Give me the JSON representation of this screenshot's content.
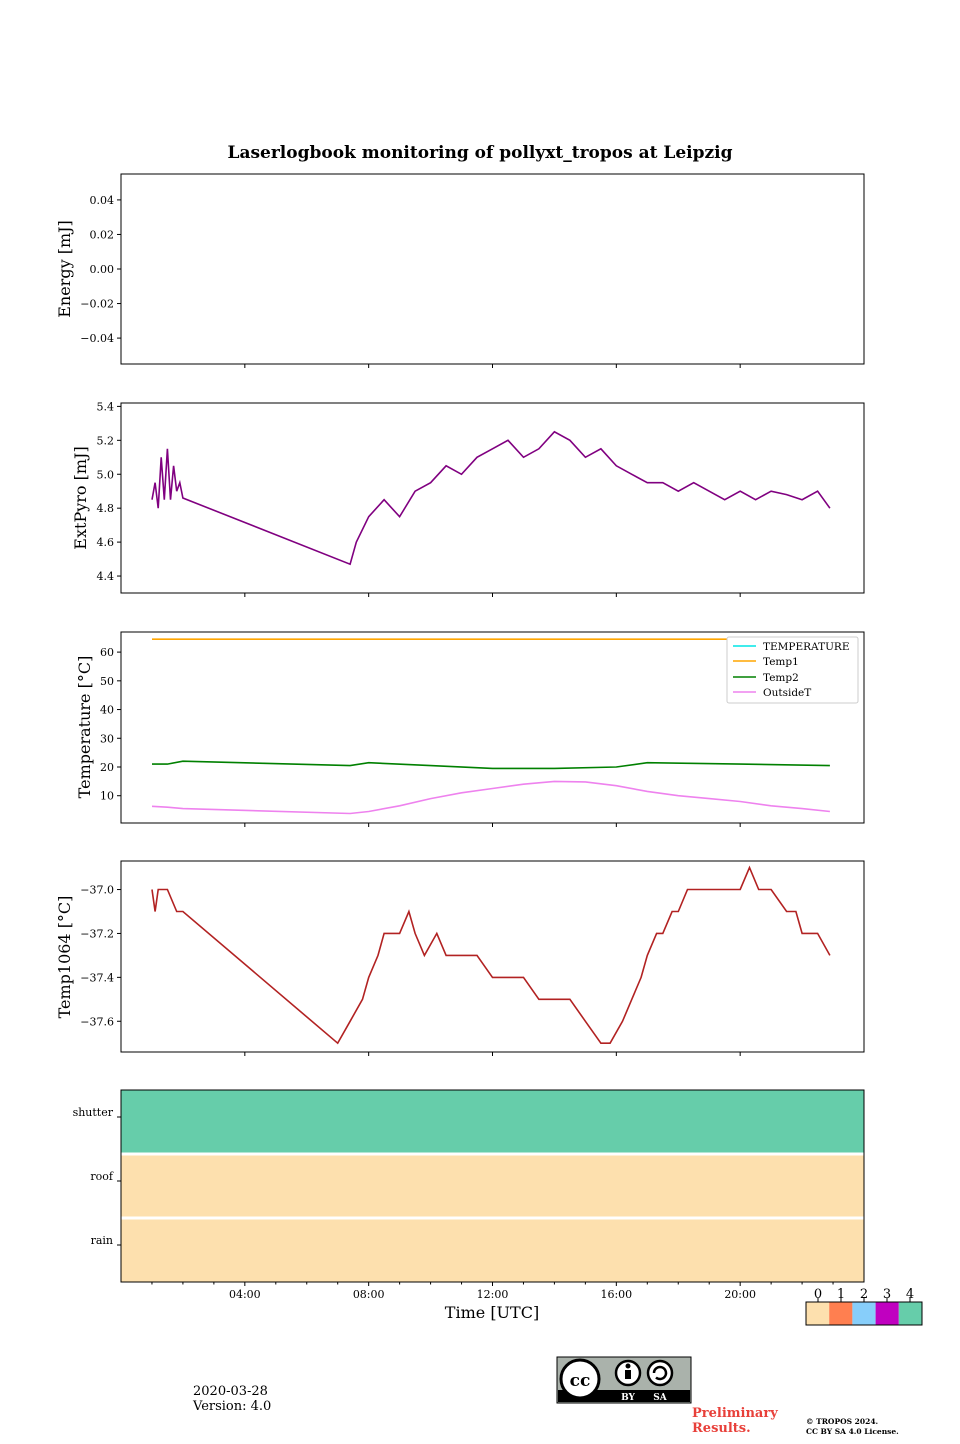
{
  "chart_data": [
    {
      "type": "line",
      "panel": "energy",
      "title": "Laserlogbook monitoring of pollyxt_tropos at Leipzig",
      "ylabel": "Energy [mJ]",
      "ylim": [
        -0.055,
        0.055
      ],
      "yticks": [
        0.04,
        0.02,
        0.0,
        -0.02,
        -0.04
      ],
      "yticklabels": [
        "0.04",
        "0.02",
        "0.00",
        "−0.02",
        "−0.04"
      ],
      "series": []
    },
    {
      "type": "line",
      "panel": "extpyro",
      "ylabel": "ExtPyro [mJ]",
      "ylim": [
        4.3,
        5.42
      ],
      "yticks": [
        4.4,
        4.6,
        4.8,
        5.0,
        5.2,
        5.4
      ],
      "yticklabels": [
        "4.4",
        "4.6",
        "4.8",
        "5.0",
        "5.2",
        "5.4"
      ],
      "series": [
        {
          "name": "ExtPyro",
          "color": "#800080",
          "x": [
            1.0,
            1.1,
            1.2,
            1.3,
            1.4,
            1.5,
            1.6,
            1.7,
            1.8,
            1.9,
            2.0,
            7.4,
            7.6,
            8.0,
            8.5,
            9.0,
            9.5,
            10.0,
            10.5,
            11.0,
            11.5,
            12.0,
            12.5,
            13.0,
            13.5,
            14.0,
            14.5,
            15.0,
            15.5,
            16.0,
            16.5,
            17.0,
            17.5,
            18.0,
            18.5,
            19.0,
            19.5,
            20.0,
            20.5,
            21.0,
            21.5,
            22.0,
            22.5,
            22.9
          ],
          "y": [
            4.85,
            4.95,
            4.8,
            5.1,
            4.85,
            5.15,
            4.85,
            5.05,
            4.9,
            4.95,
            4.86,
            4.47,
            4.6,
            4.75,
            4.85,
            4.75,
            4.9,
            4.95,
            5.05,
            5.0,
            5.1,
            5.15,
            5.2,
            5.1,
            5.15,
            5.25,
            5.2,
            5.1,
            5.15,
            5.05,
            5.0,
            4.95,
            4.95,
            4.9,
            4.95,
            4.9,
            4.85,
            4.9,
            4.85,
            4.9,
            4.88,
            4.85,
            4.9,
            4.8
          ]
        }
      ]
    },
    {
      "type": "line",
      "panel": "temperature",
      "ylabel": "Temperature [°C]",
      "ylim": [
        0.5,
        67
      ],
      "yticks": [
        10,
        20,
        30,
        40,
        50,
        60
      ],
      "yticklabels": [
        "10",
        "20",
        "30",
        "40",
        "50",
        "60"
      ],
      "legend_position": "top-right",
      "series": [
        {
          "name": "TEMPERATURE",
          "color": "#00e5e5",
          "x": [],
          "y": []
        },
        {
          "name": "Temp1",
          "color": "#ffa500",
          "x": [
            1.0,
            22.9
          ],
          "y": [
            64.5,
            64.5
          ]
        },
        {
          "name": "Temp2",
          "color": "#008000",
          "x": [
            1.0,
            1.5,
            2.0,
            7.4,
            8.0,
            10.0,
            12.0,
            14.0,
            16.0,
            17.0,
            20.0,
            22.9
          ],
          "y": [
            21.0,
            21.0,
            22.0,
            20.5,
            21.5,
            20.5,
            19.5,
            19.5,
            20.0,
            21.5,
            21.0,
            20.5
          ]
        },
        {
          "name": "OutsideT",
          "color": "#ee82ee",
          "x": [
            1.0,
            1.5,
            2.0,
            7.4,
            8.0,
            9.0,
            10.0,
            11.0,
            12.0,
            13.0,
            14.0,
            15.0,
            16.0,
            17.0,
            18.0,
            19.0,
            20.0,
            21.0,
            22.0,
            22.9
          ],
          "y": [
            6.3,
            6.0,
            5.5,
            3.8,
            4.5,
            6.5,
            9.0,
            11.0,
            12.5,
            14.0,
            15.0,
            14.8,
            13.5,
            11.5,
            10.0,
            9.0,
            8.0,
            6.5,
            5.5,
            4.5
          ]
        }
      ]
    },
    {
      "type": "line",
      "panel": "temp1064",
      "ylabel": "Temp1064 [°C]",
      "ylim": [
        -37.74,
        -36.87
      ],
      "yticks": [
        -37.0,
        -37.2,
        -37.4,
        -37.6
      ],
      "yticklabels": [
        "−37.0",
        "−37.2",
        "−37.4",
        "−37.6"
      ],
      "series": [
        {
          "name": "Temp1064",
          "color": "#b22222",
          "x": [
            1.0,
            1.1,
            1.2,
            1.5,
            1.8,
            2.0,
            7.0,
            7.4,
            7.8,
            8.0,
            8.3,
            8.5,
            8.8,
            9.0,
            9.3,
            9.5,
            9.8,
            10.2,
            10.5,
            11.0,
            11.5,
            12.0,
            12.3,
            12.5,
            13.0,
            13.5,
            14.0,
            14.5,
            15.0,
            15.5,
            15.8,
            16.2,
            16.5,
            16.8,
            17.0,
            17.3,
            17.5,
            17.8,
            18.0,
            18.3,
            18.5,
            19.0,
            19.5,
            20.0,
            20.3,
            20.6,
            21.0,
            21.5,
            21.8,
            22.0,
            22.5,
            22.9
          ],
          "y": [
            -37.0,
            -37.1,
            -37.0,
            -37.0,
            -37.1,
            -37.1,
            -37.7,
            -37.6,
            -37.5,
            -37.4,
            -37.3,
            -37.2,
            -37.2,
            -37.2,
            -37.1,
            -37.2,
            -37.3,
            -37.2,
            -37.3,
            -37.3,
            -37.3,
            -37.4,
            -37.4,
            -37.4,
            -37.4,
            -37.5,
            -37.5,
            -37.5,
            -37.6,
            -37.7,
            -37.7,
            -37.6,
            -37.5,
            -37.4,
            -37.3,
            -37.2,
            -37.2,
            -37.1,
            -37.1,
            -37.0,
            -37.0,
            -37.0,
            -37.0,
            -37.0,
            -36.9,
            -37.0,
            -37.0,
            -37.1,
            -37.1,
            -37.2,
            -37.2,
            -37.3
          ]
        }
      ]
    },
    {
      "type": "heatmap",
      "panel": "status",
      "ylabels": [
        "shutter",
        "roof",
        "rain"
      ],
      "values": [
        4,
        0,
        0
      ],
      "xlabel": "Time [UTC]",
      "xlim": [
        0,
        24
      ],
      "xticks": [
        4,
        8,
        12,
        16,
        20
      ],
      "xticklabels": [
        "04:00",
        "08:00",
        "12:00",
        "16:00",
        "20:00"
      ],
      "colorbar": {
        "labels": [
          "0",
          "1",
          "2",
          "3",
          "4"
        ],
        "colors": [
          "#fde0ae",
          "#ff7f50",
          "#87cefa",
          "#c000c0",
          "#66cdaa"
        ]
      }
    }
  ],
  "footer": {
    "date": "2020-03-28",
    "version": "Version: 4.0",
    "preliminary_line1": "Preliminary",
    "preliminary_line2": "Results.",
    "copyright_line1": "© TROPOS 2024.",
    "copyright_line2": "CC BY SA 4.0 License.",
    "license_badge": {
      "label_by": "BY",
      "label_sa": "SA",
      "icon": "cc-by-sa-icon"
    }
  }
}
